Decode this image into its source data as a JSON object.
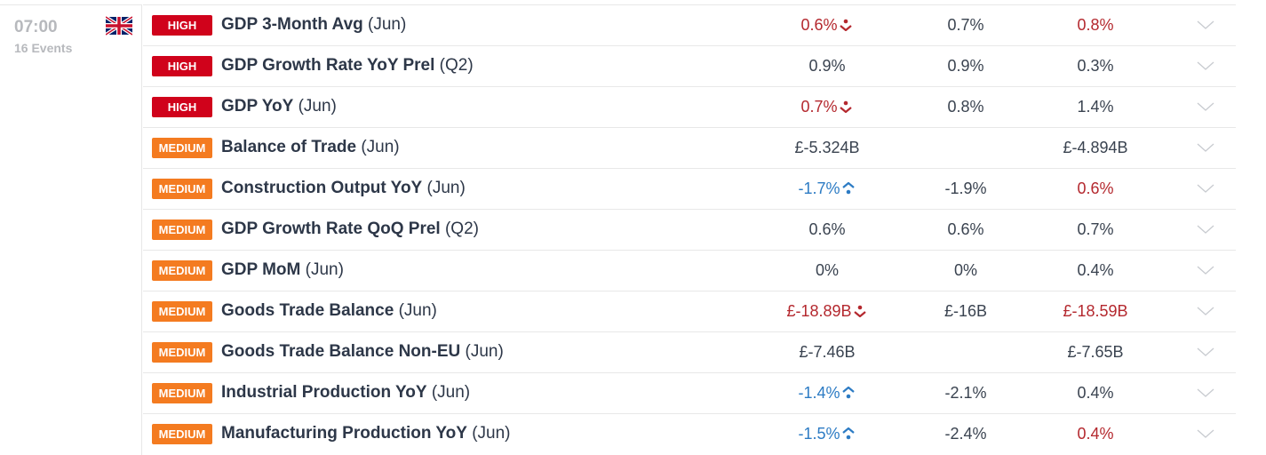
{
  "group": {
    "time": "07:00",
    "events": "16 Events",
    "country_flag": "uk-flag-icon"
  },
  "colors": {
    "high": "#d0021b",
    "medium": "#f47b20",
    "negative": "#b4282e",
    "positive": "#2c7bc4",
    "neutral": "#3a4350"
  },
  "events": [
    {
      "impact": "HIGH",
      "name": "GDP 3-Month Avg",
      "period": "(Jun)",
      "actual": "0.6%",
      "actual_color": "negative",
      "actual_icon": "down",
      "forecast": "0.7%",
      "previous": "0.8%",
      "previous_color": "negative"
    },
    {
      "impact": "HIGH",
      "name": "GDP Growth Rate YoY Prel",
      "period": "(Q2)",
      "actual": "0.9%",
      "actual_color": "neutral",
      "actual_icon": "",
      "forecast": "0.9%",
      "previous": "0.3%",
      "previous_color": "neutral"
    },
    {
      "impact": "HIGH",
      "name": "GDP YoY",
      "period": "(Jun)",
      "actual": "0.7%",
      "actual_color": "negative",
      "actual_icon": "down",
      "forecast": "0.8%",
      "previous": "1.4%",
      "previous_color": "neutral"
    },
    {
      "impact": "MEDIUM",
      "name": "Balance of Trade",
      "period": "(Jun)",
      "actual": "£-5.324B",
      "actual_color": "neutral",
      "actual_icon": "",
      "forecast": "",
      "previous": "£-4.894B",
      "previous_color": "neutral"
    },
    {
      "impact": "MEDIUM",
      "name": "Construction Output YoY",
      "period": "(Jun)",
      "actual": "-1.7%",
      "actual_color": "positive",
      "actual_icon": "up",
      "forecast": "-1.9%",
      "previous": "0.6%",
      "previous_color": "negative"
    },
    {
      "impact": "MEDIUM",
      "name": "GDP Growth Rate QoQ Prel",
      "period": "(Q2)",
      "actual": "0.6%",
      "actual_color": "neutral",
      "actual_icon": "",
      "forecast": "0.6%",
      "previous": "0.7%",
      "previous_color": "neutral"
    },
    {
      "impact": "MEDIUM",
      "name": "GDP MoM",
      "period": "(Jun)",
      "actual": "0%",
      "actual_color": "neutral",
      "actual_icon": "",
      "forecast": "0%",
      "previous": "0.4%",
      "previous_color": "neutral"
    },
    {
      "impact": "MEDIUM",
      "name": "Goods Trade Balance",
      "period": "(Jun)",
      "actual": "£-18.89B",
      "actual_color": "negative",
      "actual_icon": "down",
      "forecast": "£-16B",
      "previous": "£-18.59B",
      "previous_color": "negative"
    },
    {
      "impact": "MEDIUM",
      "name": "Goods Trade Balance Non-EU",
      "period": "(Jun)",
      "actual": "£-7.46B",
      "actual_color": "neutral",
      "actual_icon": "",
      "forecast": "",
      "previous": "£-7.65B",
      "previous_color": "neutral"
    },
    {
      "impact": "MEDIUM",
      "name": "Industrial Production YoY",
      "period": "(Jun)",
      "actual": "-1.4%",
      "actual_color": "positive",
      "actual_icon": "up",
      "forecast": "-2.1%",
      "previous": "0.4%",
      "previous_color": "neutral"
    },
    {
      "impact": "MEDIUM",
      "name": "Manufacturing Production YoY",
      "period": "(Jun)",
      "actual": "-1.5%",
      "actual_color": "positive",
      "actual_icon": "up",
      "forecast": "-2.4%",
      "previous": "0.4%",
      "previous_color": "negative"
    }
  ]
}
